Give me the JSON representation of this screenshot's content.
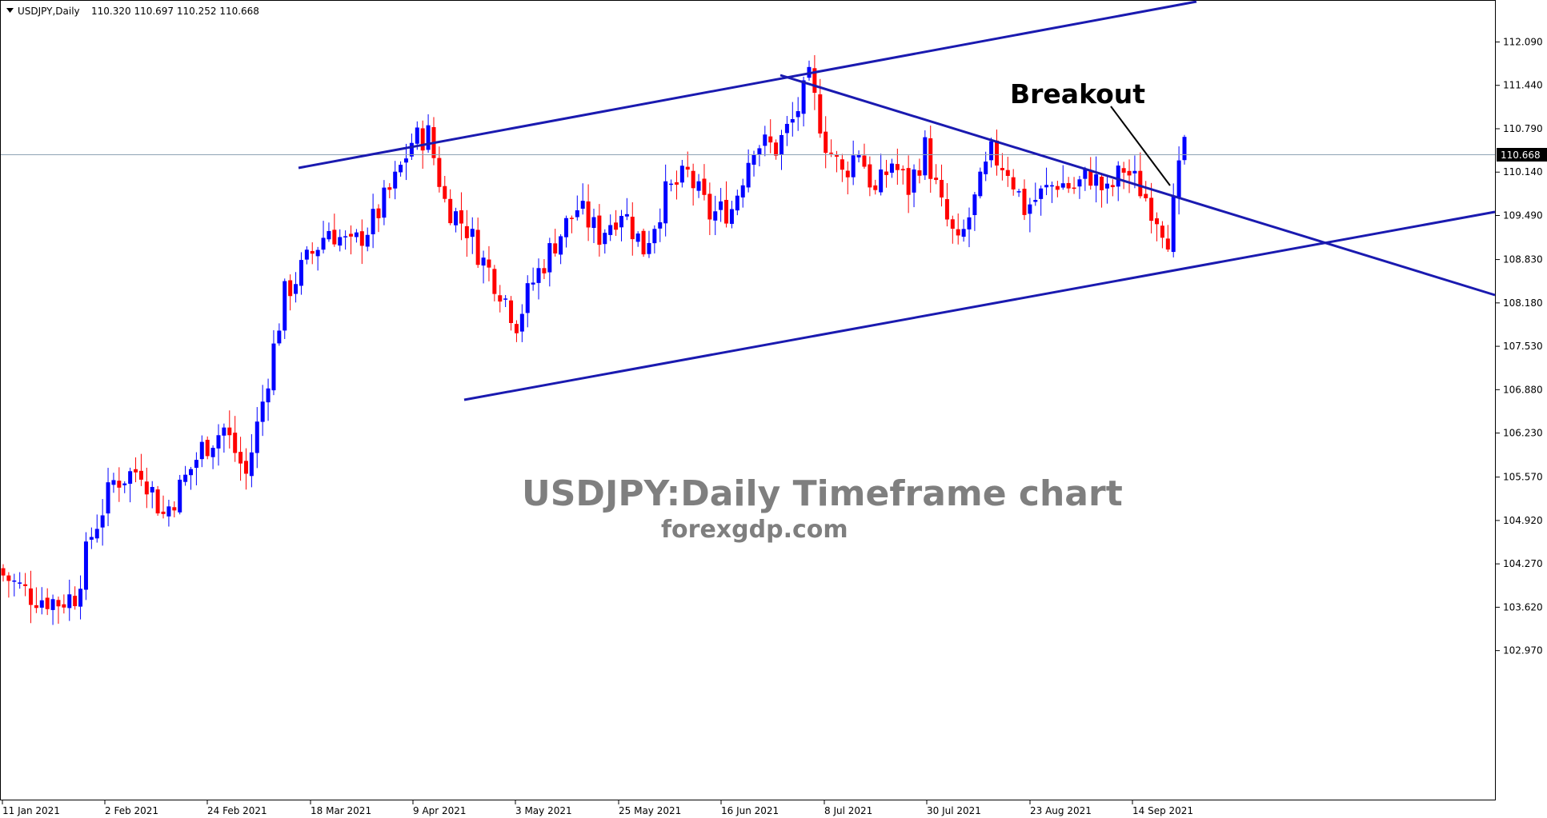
{
  "header": {
    "symbol_timeframe": "USDJPY,Daily",
    "ohlc": "110.320 110.697 110.252 110.668"
  },
  "chart_data": {
    "type": "candlestick",
    "symbol": "USDJPY",
    "timeframe": "Daily",
    "current_price": "110.668",
    "y_ticks": [
      "112.090",
      "111.440",
      "110.790",
      "110.140",
      "109.490",
      "108.830",
      "108.180",
      "107.530",
      "106.880",
      "106.230",
      "105.570",
      "104.920",
      "104.270",
      "103.620",
      "102.970"
    ],
    "x_tick_labels": [
      "11 Jan 2021",
      "2 Feb 2021",
      "24 Feb 2021",
      "18 Mar 2021",
      "9 Apr 2021",
      "3 May 2021",
      "25 May 2021",
      "16 Jun 2021",
      "8 Jul 2021",
      "30 Jul 2021",
      "23 Aug 2021",
      "14 Sep 2021"
    ],
    "ylim": [
      102.6,
      112.5
    ],
    "candles_shown": "approx. 175 daily candles, 11 Jan 2021 – 22 Sep 2021",
    "last_candle": {
      "open": 110.32,
      "high": 110.697,
      "low": 110.252,
      "close": 110.668
    },
    "annotations": [
      "Breakout"
    ],
    "trendlines": [
      "upper ascending channel line",
      "descending resistance line",
      "lower ascending support line"
    ],
    "colors": {
      "bull": "#0000ff",
      "bear": "#ff0000",
      "trendline": "#1a1ab0",
      "price_line": "#8fa3b5"
    }
  },
  "watermark": {
    "title": "USDJPY:Daily Timeframe chart",
    "site": "forexgdp.com"
  }
}
